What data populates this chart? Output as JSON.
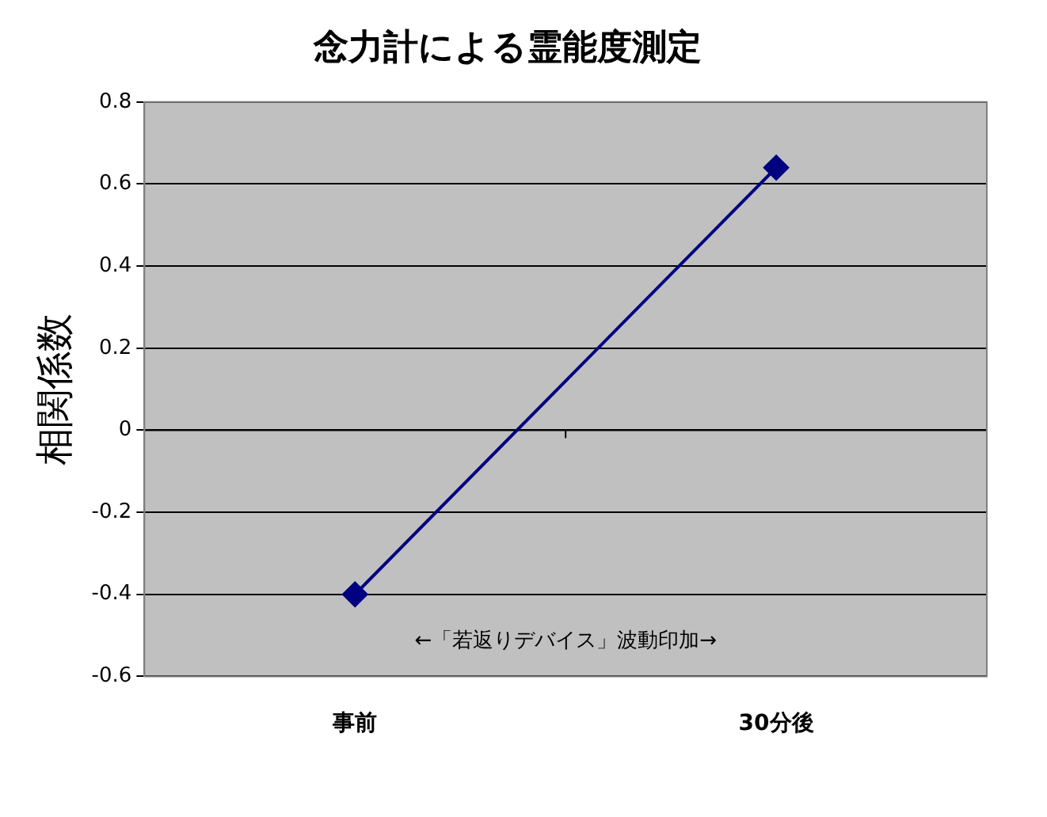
{
  "chart_data": {
    "type": "line",
    "title": "念力計による霊能度測定",
    "ylabel": "相関係数",
    "categories": [
      "事前",
      "30分後"
    ],
    "series": [
      {
        "color": "#000080",
        "values": [
          -0.4,
          0.64
        ]
      }
    ],
    "ylim": [
      -0.6,
      0.8
    ],
    "yticks": [
      -0.6,
      -0.4,
      -0.2,
      0,
      0.2,
      0.4,
      0.6,
      0.8
    ],
    "grid": "y",
    "marker": "diamond",
    "line_style": "solid",
    "legend": false,
    "annotations": [
      "←「若返りデバイス」波動印加→"
    ]
  }
}
